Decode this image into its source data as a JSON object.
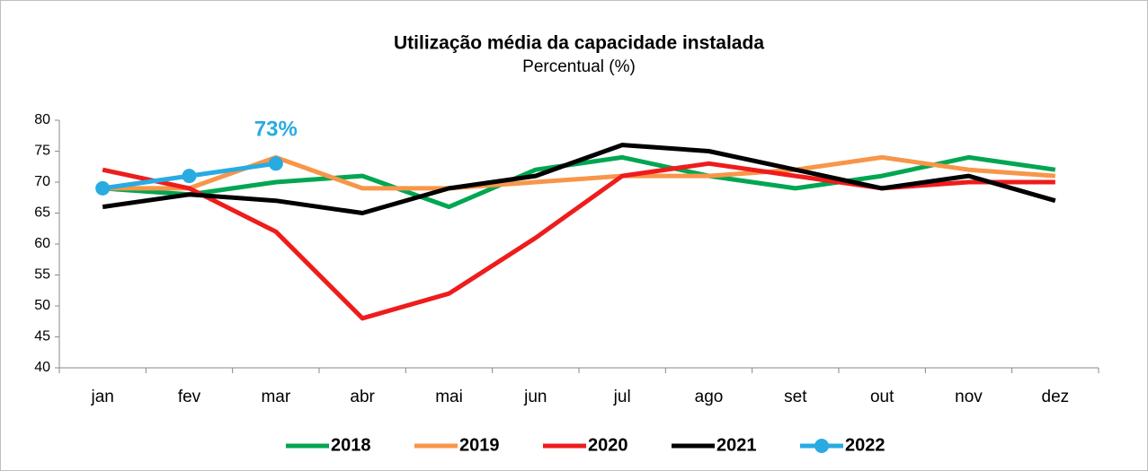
{
  "chart_data": {
    "type": "line",
    "title": "Utilização média da capacidade instalada",
    "subtitle": "Percentual (%)",
    "categories": [
      "jan",
      "fev",
      "mar",
      "abr",
      "mai",
      "jun",
      "jul",
      "ago",
      "set",
      "out",
      "nov",
      "dez"
    ],
    "series": [
      {
        "name": "2018",
        "color": "#00a651",
        "values": [
          69,
          68,
          70,
          71,
          66,
          72,
          74,
          71,
          69,
          71,
          74,
          72
        ]
      },
      {
        "name": "2019",
        "color": "#f7964a",
        "values": [
          69,
          69,
          74,
          69,
          69,
          70,
          71,
          71,
          72,
          74,
          72,
          71
        ]
      },
      {
        "name": "2020",
        "color": "#ee1c1c",
        "values": [
          72,
          69,
          62,
          48,
          52,
          61,
          71,
          73,
          71,
          69,
          70,
          70
        ]
      },
      {
        "name": "2021",
        "color": "#000000",
        "values": [
          66,
          68,
          67,
          65,
          69,
          71,
          76,
          75,
          72,
          69,
          71,
          67
        ]
      },
      {
        "name": "2022",
        "color": "#29abe2",
        "marker": "circle",
        "values": [
          69,
          71,
          73,
          null,
          null,
          null,
          null,
          null,
          null,
          null,
          null,
          null
        ],
        "value_labels": [
          null,
          null,
          "73%",
          null,
          null,
          null,
          null,
          null,
          null,
          null,
          null,
          null
        ]
      }
    ],
    "ylim": [
      40,
      80
    ],
    "yticks": [
      40,
      45,
      50,
      55,
      60,
      65,
      70,
      75,
      80
    ],
    "grid": false,
    "legend": "bottom"
  }
}
